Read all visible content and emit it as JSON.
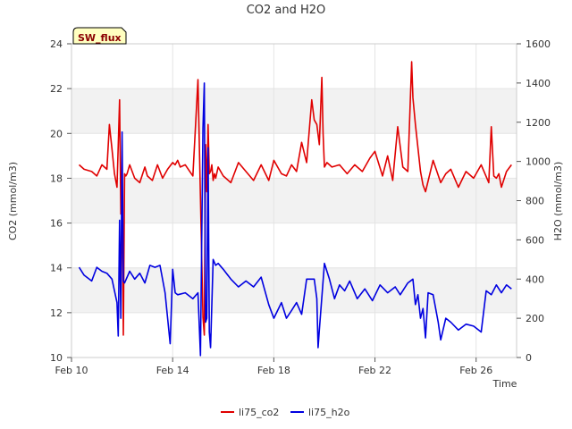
{
  "chart_data": {
    "type": "line",
    "title": "CO2 and H2O",
    "badge": "SW_flux",
    "xlabel": "Time",
    "ylabel_left": "CO2 (mmol/m3)",
    "ylabel_right": "H2O (mmol/m3)",
    "x_range": [
      10,
      27.6
    ],
    "ylim_left": [
      10,
      24
    ],
    "ylim_right": [
      0,
      1600
    ],
    "x_ticks": [
      {
        "value": 10,
        "label": "Feb 10"
      },
      {
        "value": 14,
        "label": "Feb 14"
      },
      {
        "value": 18,
        "label": "Feb 18"
      },
      {
        "value": 22,
        "label": "Feb 22"
      },
      {
        "value": 26,
        "label": "Feb 26"
      }
    ],
    "y_ticks_left": [
      10,
      12,
      14,
      16,
      18,
      20,
      22,
      24
    ],
    "y_ticks_right": [
      0,
      200,
      400,
      600,
      800,
      1000,
      1200,
      1400,
      1600
    ],
    "bands_left": [
      [
        12,
        14
      ],
      [
        16,
        18
      ],
      [
        20,
        22
      ]
    ],
    "legend_position": "bottom-center",
    "colors": {
      "co2": "#e00000",
      "h2o": "#0000e0",
      "band": "#f2f2f2",
      "badge_fill": "#ffffc0",
      "badge_text": "#8b0000"
    },
    "series": [
      {
        "name": "li75_co2",
        "axis": "left",
        "color": "#e00000",
        "x": [
          10.3,
          10.5,
          10.8,
          11.0,
          11.2,
          11.4,
          11.5,
          11.6,
          11.7,
          11.8,
          11.9,
          11.95,
          12.0,
          12.05,
          12.1,
          12.15,
          12.2,
          12.3,
          12.5,
          12.7,
          12.9,
          13.0,
          13.2,
          13.4,
          13.6,
          13.8,
          14.0,
          14.1,
          14.2,
          14.3,
          14.5,
          14.8,
          15.0,
          15.1,
          15.2,
          15.25,
          15.3,
          15.35,
          15.4,
          15.45,
          15.5,
          15.55,
          15.6,
          15.65,
          15.7,
          15.8,
          16.0,
          16.3,
          16.6,
          16.9,
          17.2,
          17.5,
          17.8,
          18.0,
          18.3,
          18.5,
          18.7,
          18.9,
          19.1,
          19.3,
          19.5,
          19.6,
          19.7,
          19.8,
          19.9,
          19.95,
          20.0,
          20.1,
          20.3,
          20.6,
          20.9,
          21.2,
          21.5,
          21.8,
          22.0,
          22.3,
          22.5,
          22.7,
          22.9,
          23.1,
          23.3,
          23.45,
          23.5,
          23.6,
          23.8,
          23.9,
          24.0,
          24.3,
          24.6,
          24.8,
          25.0,
          25.3,
          25.6,
          25.9,
          26.2,
          26.5,
          26.6,
          26.7,
          26.8,
          26.9,
          27.0,
          27.2,
          27.4
        ],
        "values": [
          18.6,
          18.4,
          18.3,
          18.1,
          18.6,
          18.4,
          20.4,
          19.3,
          18.2,
          17.6,
          21.5,
          16.4,
          18.0,
          11.0,
          18.2,
          18.1,
          18.2,
          18.6,
          18.0,
          17.8,
          18.5,
          18.1,
          17.9,
          18.6,
          18.0,
          18.4,
          18.7,
          18.6,
          18.8,
          18.5,
          18.6,
          18.1,
          22.4,
          17.1,
          11.8,
          11.0,
          19.5,
          17.4,
          20.4,
          18.2,
          18.3,
          18.6,
          17.9,
          18.2,
          18.0,
          18.5,
          18.1,
          17.8,
          18.7,
          18.3,
          17.9,
          18.6,
          17.9,
          18.8,
          18.2,
          18.1,
          18.6,
          18.3,
          19.6,
          18.7,
          21.5,
          20.6,
          20.4,
          19.5,
          22.5,
          20.0,
          18.5,
          18.7,
          18.5,
          18.6,
          18.2,
          18.6,
          18.3,
          18.9,
          19.2,
          18.1,
          19.0,
          17.9,
          20.3,
          18.5,
          18.3,
          23.2,
          21.6,
          20.4,
          18.3,
          17.7,
          17.4,
          18.8,
          17.8,
          18.2,
          18.4,
          17.6,
          18.3,
          18.0,
          18.6,
          17.8,
          20.3,
          18.1,
          18.0,
          18.2,
          17.6,
          18.3,
          18.6
        ]
      },
      {
        "name": "li75_h2o",
        "axis": "right",
        "color": "#0000e0",
        "x": [
          10.3,
          10.5,
          10.8,
          11.0,
          11.2,
          11.4,
          11.6,
          11.8,
          11.85,
          11.9,
          11.95,
          12.0,
          12.05,
          12.1,
          12.3,
          12.5,
          12.7,
          12.9,
          13.1,
          13.3,
          13.5,
          13.7,
          13.9,
          14.0,
          14.1,
          14.2,
          14.5,
          14.8,
          15.0,
          15.1,
          15.2,
          15.25,
          15.3,
          15.35,
          15.4,
          15.45,
          15.5,
          15.6,
          15.7,
          15.8,
          16.0,
          16.3,
          16.6,
          16.9,
          17.2,
          17.5,
          17.8,
          18.0,
          18.3,
          18.5,
          18.7,
          18.9,
          19.1,
          19.3,
          19.5,
          19.6,
          19.7,
          19.75,
          19.8,
          20.0,
          20.2,
          20.4,
          20.6,
          20.8,
          21.0,
          21.3,
          21.6,
          21.9,
          22.2,
          22.5,
          22.8,
          23.0,
          23.3,
          23.5,
          23.6,
          23.7,
          23.8,
          23.9,
          24.0,
          24.1,
          24.3,
          24.5,
          24.6,
          24.8,
          25.0,
          25.3,
          25.6,
          25.9,
          26.2,
          26.4,
          26.6,
          26.8,
          27.0,
          27.2,
          27.4
        ],
        "values": [
          460,
          420,
          390,
          460,
          440,
          430,
          400,
          280,
          110,
          700,
          200,
          1150,
          390,
          380,
          440,
          400,
          430,
          380,
          470,
          460,
          470,
          330,
          70,
          450,
          330,
          320,
          330,
          300,
          330,
          10,
          1170,
          1400,
          180,
          200,
          1070,
          130,
          50,
          500,
          470,
          480,
          450,
          400,
          360,
          390,
          360,
          410,
          270,
          200,
          280,
          200,
          240,
          280,
          220,
          400,
          400,
          400,
          300,
          50,
          140,
          480,
          400,
          300,
          370,
          340,
          390,
          300,
          350,
          290,
          370,
          330,
          360,
          320,
          380,
          400,
          270,
          320,
          200,
          250,
          100,
          330,
          320,
          180,
          90,
          200,
          180,
          140,
          170,
          160,
          130,
          340,
          320,
          370,
          330,
          370,
          350
        ]
      }
    ]
  }
}
